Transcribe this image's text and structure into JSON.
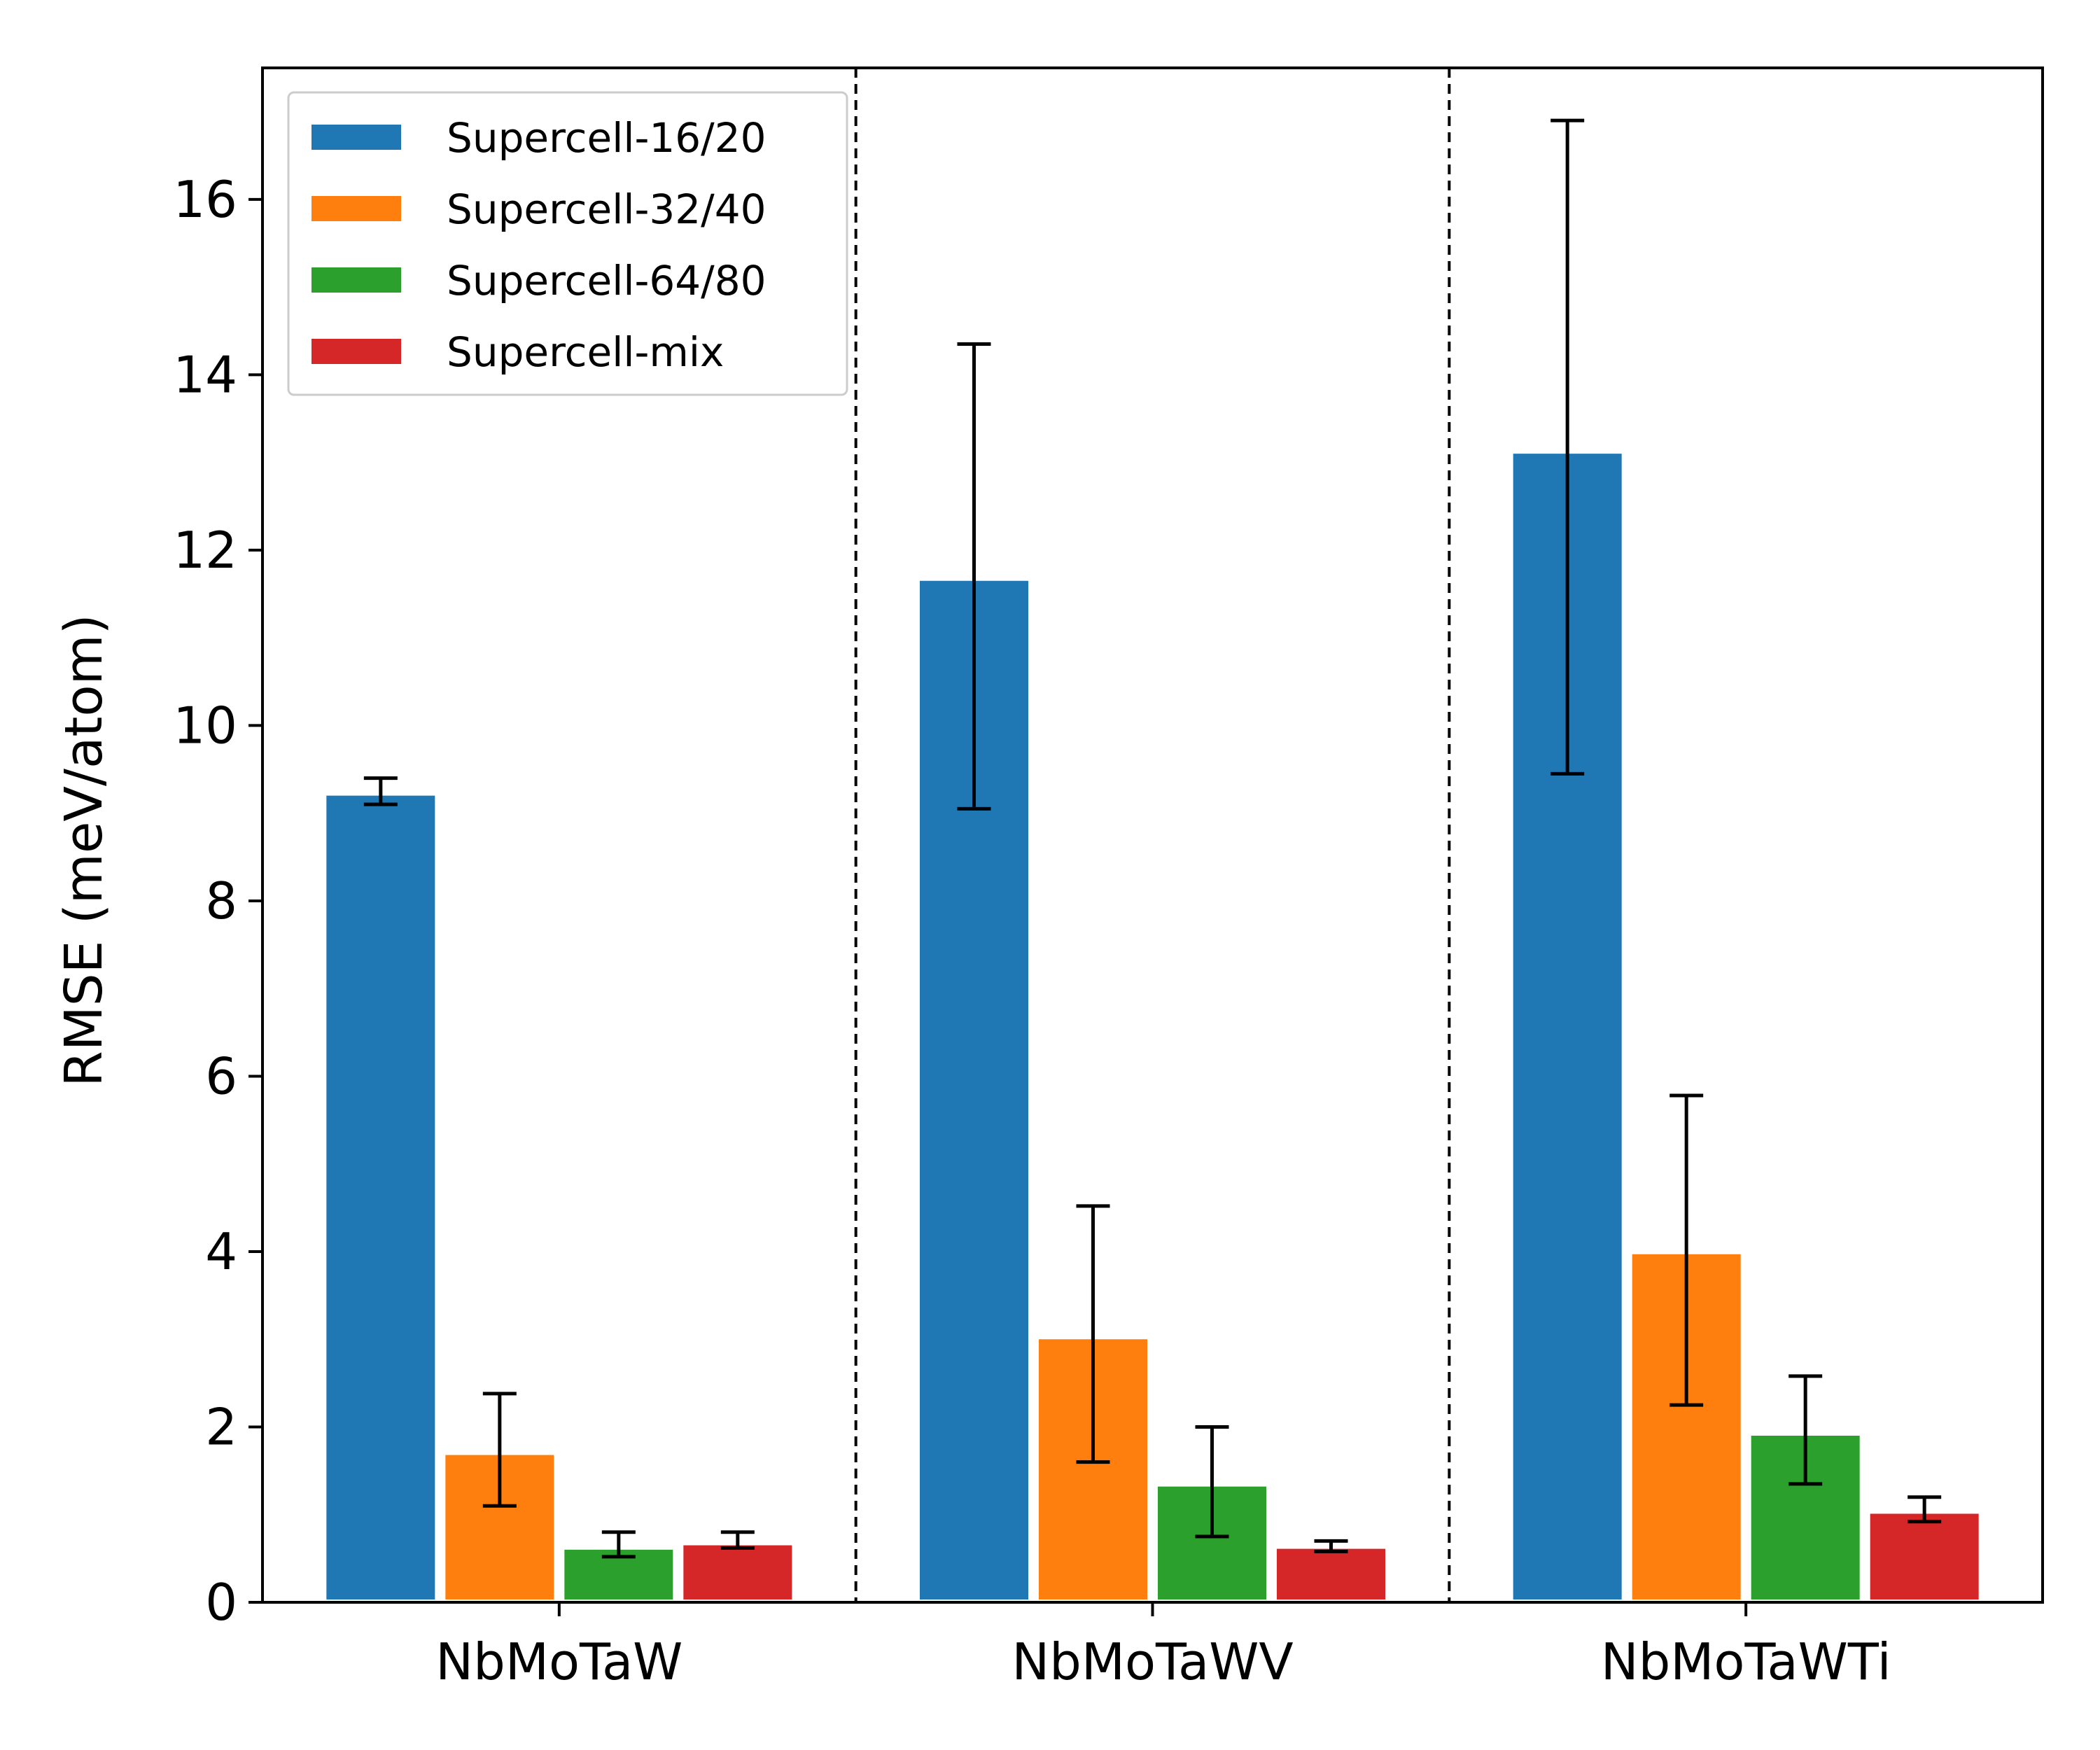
{
  "chart_data": {
    "type": "bar",
    "title": "",
    "xlabel": "",
    "ylabel": "RMSE (meV/atom)",
    "ylim": [
      0,
      17.5
    ],
    "yticks": [
      0,
      2,
      4,
      6,
      8,
      10,
      12,
      14,
      16
    ],
    "grid": false,
    "legend_position": "top-left",
    "group_separators": "dashed vertical lines between groups",
    "categories": [
      "NbMoTaW",
      "NbMoTaWV",
      "NbMoTaWTi"
    ],
    "series": [
      {
        "name": "Supercell-16/20",
        "color": "#1f77b4",
        "values": [
          9.2,
          11.65,
          13.1
        ],
        "error_low": [
          9.1,
          9.05,
          9.45
        ],
        "error_high": [
          9.4,
          14.35,
          16.9
        ]
      },
      {
        "name": "Supercell-32/40",
        "color": "#ff7f0e",
        "values": [
          1.68,
          3.0,
          3.97
        ],
        "error_low": [
          1.1,
          1.6,
          2.25
        ],
        "error_high": [
          2.38,
          4.52,
          5.78
        ]
      },
      {
        "name": "Supercell-64/80",
        "color": "#2ca02c",
        "values": [
          0.6,
          1.32,
          1.9
        ],
        "error_low": [
          0.52,
          0.75,
          1.35
        ],
        "error_high": [
          0.8,
          2.0,
          2.58
        ]
      },
      {
        "name": "Supercell-mix",
        "color": "#d62728",
        "values": [
          0.65,
          0.61,
          1.01
        ],
        "error_low": [
          0.62,
          0.58,
          0.92
        ],
        "error_high": [
          0.8,
          0.7,
          1.2
        ]
      }
    ]
  }
}
